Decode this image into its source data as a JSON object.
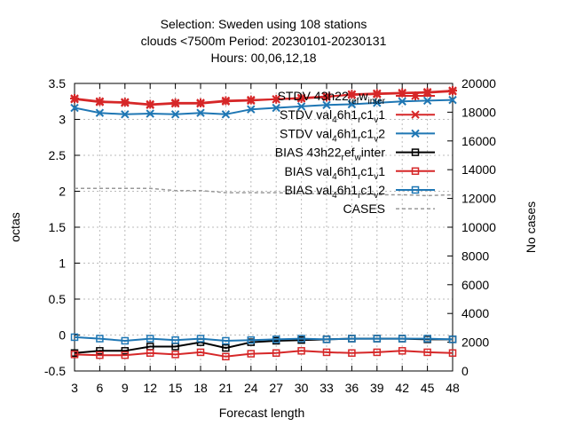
{
  "chart_data": {
    "type": "line",
    "title_lines": [
      "Selection: Sweden using   108 stations",
      "clouds <7500m   Period: 20230101-20230131",
      "Hours: 00,06,12,18"
    ],
    "xlabel": "Forecast length",
    "ylabel": "octas",
    "y2label": "No cases",
    "x_ticks": [
      3,
      6,
      9,
      12,
      15,
      18,
      21,
      24,
      27,
      30,
      33,
      36,
      39,
      42,
      45,
      48
    ],
    "y_ticks": [
      "-0.5",
      "0",
      "0.5",
      "1",
      "1.5",
      "2",
      "2.5",
      "3",
      "3.5"
    ],
    "y2_ticks": [
      "0",
      "2000",
      "4000",
      "6000",
      "8000",
      "10000",
      "12000",
      "14000",
      "16000",
      "18000",
      "20000"
    ],
    "xlim": [
      3,
      48
    ],
    "ylim": [
      -0.5,
      3.5
    ],
    "y2lim": [
      0,
      20000
    ],
    "grid": true,
    "legend_position": "top-right",
    "series": [
      {
        "name": "STDV 43h22_ref_winter",
        "color": "#d62728",
        "marker": "star",
        "axis": "y",
        "x": [
          3,
          6,
          9,
          12,
          15,
          18,
          21,
          24,
          27,
          30,
          33,
          36,
          39,
          42,
          45,
          48
        ],
        "values": [
          3.29,
          3.25,
          3.24,
          3.21,
          3.23,
          3.23,
          3.26,
          3.27,
          3.28,
          3.29,
          3.31,
          3.35,
          3.36,
          3.37,
          3.38,
          3.4
        ]
      },
      {
        "name": "STDV val_46h1_rc1_v1",
        "color": "#d62728",
        "marker": "cross",
        "axis": "y",
        "x": [
          3,
          6,
          9,
          12,
          15,
          18,
          21,
          24,
          27,
          30,
          33,
          36,
          39,
          42,
          45,
          48
        ],
        "values": [
          3.28,
          3.24,
          3.23,
          3.2,
          3.22,
          3.22,
          3.25,
          3.26,
          3.28,
          3.3,
          3.32,
          3.34,
          3.35,
          3.36,
          3.37,
          3.39
        ]
      },
      {
        "name": "STDV val_46h1_rc1_v2",
        "color": "#1f77b4",
        "marker": "cross",
        "axis": "y",
        "x": [
          3,
          6,
          9,
          12,
          15,
          18,
          21,
          24,
          27,
          30,
          33,
          36,
          39,
          42,
          45,
          48
        ],
        "values": [
          3.16,
          3.09,
          3.07,
          3.08,
          3.07,
          3.09,
          3.07,
          3.14,
          3.16,
          3.18,
          3.2,
          3.21,
          3.23,
          3.25,
          3.26,
          3.27
        ]
      },
      {
        "name": "BIAS 43h22_ref_winter",
        "color": "#000000",
        "marker": "square",
        "axis": "y",
        "x": [
          3,
          6,
          9,
          12,
          15,
          18,
          21,
          24,
          27,
          30,
          33,
          36,
          39,
          42,
          45,
          48
        ],
        "values": [
          -0.25,
          -0.22,
          -0.22,
          -0.16,
          -0.16,
          -0.1,
          -0.18,
          -0.1,
          -0.08,
          -0.07,
          -0.06,
          -0.05,
          -0.05,
          -0.05,
          -0.06,
          -0.06
        ]
      },
      {
        "name": "BIAS val_46h1_rc1_v1",
        "color": "#d62728",
        "marker": "square",
        "axis": "y",
        "x": [
          3,
          6,
          9,
          12,
          15,
          18,
          21,
          24,
          27,
          30,
          33,
          36,
          39,
          42,
          45,
          48
        ],
        "values": [
          -0.27,
          -0.28,
          -0.28,
          -0.25,
          -0.27,
          -0.24,
          -0.3,
          -0.26,
          -0.25,
          -0.22,
          -0.24,
          -0.25,
          -0.24,
          -0.22,
          -0.24,
          -0.25
        ]
      },
      {
        "name": "BIAS val_46h1_rc1_v2",
        "color": "#1f77b4",
        "marker": "square",
        "axis": "y",
        "x": [
          3,
          6,
          9,
          12,
          15,
          18,
          21,
          24,
          27,
          30,
          33,
          36,
          39,
          42,
          45,
          48
        ],
        "values": [
          -0.03,
          -0.05,
          -0.08,
          -0.05,
          -0.07,
          -0.05,
          -0.08,
          -0.07,
          -0.06,
          -0.05,
          -0.06,
          -0.05,
          -0.05,
          -0.05,
          -0.05,
          -0.06
        ]
      },
      {
        "name": "CASES",
        "color": "#999999",
        "marker": "none",
        "dashed": true,
        "axis": "y2",
        "x": [
          3,
          6,
          9,
          12,
          15,
          18,
          21,
          24,
          27,
          30,
          33,
          36,
          39,
          42,
          45,
          48
        ],
        "values": [
          12700,
          12700,
          12700,
          12700,
          12550,
          12550,
          12400,
          12400,
          12400,
          12350,
          12300,
          12300,
          12250,
          12250,
          12200,
          12250
        ]
      }
    ],
    "legend_entries": [
      {
        "label": "STDV 43h22",
        "sub1": "ref",
        "mid": "w",
        "sub2": "inter",
        "style": "ref"
      },
      {
        "label": "STDV val",
        "sub1": "4",
        "mid": "6h1",
        "sub2": "r",
        "tail": "c1",
        "sub3": "v",
        "end": "1"
      },
      {
        "label": "STDV val",
        "sub1": "4",
        "mid": "6h1",
        "sub2": "r",
        "tail": "c1",
        "sub3": "v",
        "end": "2"
      },
      {
        "label": "BIAS 43h22",
        "sub1": "r",
        "mid": "ef",
        "sub2": "w",
        "tail": "inter",
        "style": "ref"
      },
      {
        "label": "BIAS val",
        "sub1": "4",
        "mid": "6h1",
        "sub2": "r",
        "tail": "c1",
        "sub3": "v",
        "end": "1"
      },
      {
        "label": "BIAS val",
        "sub1": "4",
        "mid": "6h1",
        "sub2": "r",
        "tail": "c1",
        "sub3": "v",
        "end": "2"
      },
      {
        "label": "CASES"
      }
    ]
  }
}
